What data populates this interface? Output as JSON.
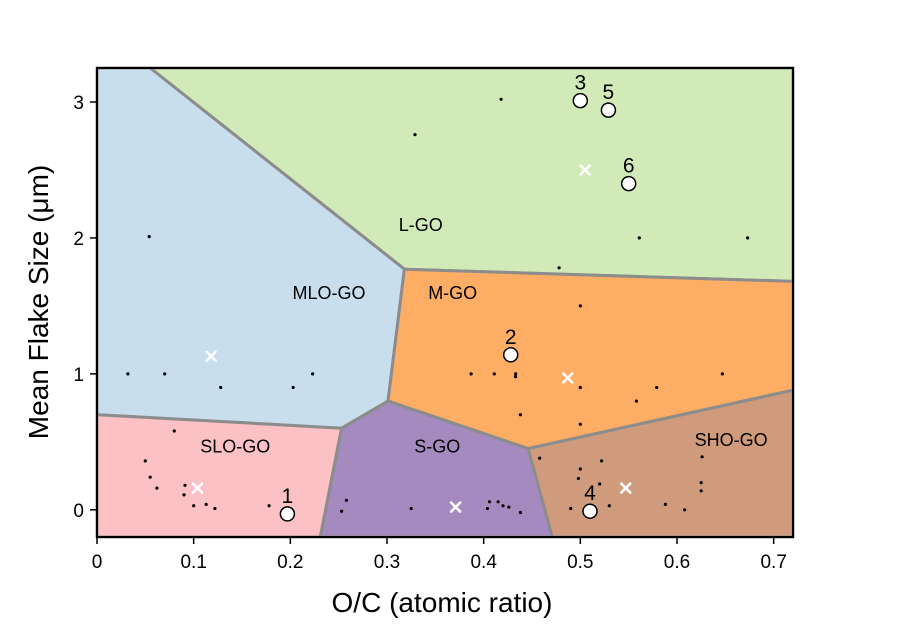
{
  "chart_data": {
    "type": "scatter",
    "xlabel": "O/C (atomic ratio)",
    "ylabel": "Mean Flake Size (μm)",
    "xlim": [
      0,
      0.72
    ],
    "ylim": [
      -0.2,
      3.25
    ],
    "xticks": [
      0,
      0.1,
      0.2,
      0.3,
      0.4,
      0.5,
      0.6,
      0.7
    ],
    "xtick_labels": [
      "0",
      "0.1",
      "0.2",
      "0.3",
      "0.4",
      "0.5",
      "0.6",
      "0.7"
    ],
    "yticks": [
      0,
      1,
      2,
      3
    ],
    "ytick_labels": [
      "0",
      "1",
      "2",
      "3"
    ],
    "grid": false,
    "colors": {
      "L-GO": "#d1eab7",
      "MLO-GO": "#c8deed",
      "M-GO": "#fdad64",
      "SLO-GO": "#fbc1c4",
      "S-GO": "#a58ac0",
      "SHO-GO": "#cf9b7c",
      "boundary": "#8c8c8c"
    },
    "regions": [
      {
        "name": "L-GO",
        "label": "L-GO",
        "label_at": [
          0.335,
          2.05
        ],
        "polygon": [
          [
            0.055,
            3.25
          ],
          [
            0.72,
            3.25
          ],
          [
            0.72,
            1.68
          ],
          [
            0.318,
            1.77
          ]
        ]
      },
      {
        "name": "MLO-GO",
        "label": "MLO-GO",
        "label_at": [
          0.24,
          1.55
        ],
        "polygon": [
          [
            0,
            3.25
          ],
          [
            0.055,
            3.25
          ],
          [
            0.318,
            1.77
          ],
          [
            0.301,
            0.8
          ],
          [
            0.253,
            0.6
          ],
          [
            0,
            0.7
          ]
        ]
      },
      {
        "name": "M-GO",
        "label": "M-GO",
        "label_at": [
          0.368,
          1.55
        ],
        "polygon": [
          [
            0.318,
            1.77
          ],
          [
            0.72,
            1.68
          ],
          [
            0.72,
            0.88
          ],
          [
            0.446,
            0.45
          ],
          [
            0.301,
            0.8
          ]
        ]
      },
      {
        "name": "SLO-GO",
        "label": "SLO-GO",
        "label_at": [
          0.143,
          0.42
        ],
        "polygon": [
          [
            0,
            0.7
          ],
          [
            0.253,
            0.6
          ],
          [
            0.231,
            -0.2
          ],
          [
            0,
            -0.2
          ]
        ]
      },
      {
        "name": "S-GO",
        "label": "S-GO",
        "label_at": [
          0.352,
          0.42
        ],
        "polygon": [
          [
            0.253,
            0.6
          ],
          [
            0.301,
            0.8
          ],
          [
            0.446,
            0.45
          ],
          [
            0.471,
            -0.2
          ],
          [
            0.231,
            -0.2
          ]
        ]
      },
      {
        "name": "SHO-GO",
        "label": "SHO-GO",
        "label_at": [
          0.656,
          0.47
        ],
        "polygon": [
          [
            0.446,
            0.45
          ],
          [
            0.72,
            0.88
          ],
          [
            0.72,
            -0.2
          ],
          [
            0.471,
            -0.2
          ]
        ]
      }
    ],
    "dots": [
      [
        0.418,
        3.02
      ],
      [
        0.329,
        2.76
      ],
      [
        0.054,
        2.01
      ],
      [
        0.561,
        2.0
      ],
      [
        0.673,
        2.0
      ],
      [
        0.478,
        1.78
      ],
      [
        0.5,
        1.5
      ],
      [
        0.032,
        1.0
      ],
      [
        0.07,
        1.0
      ],
      [
        0.128,
        0.9
      ],
      [
        0.203,
        0.9
      ],
      [
        0.223,
        1.0
      ],
      [
        0.387,
        1.0
      ],
      [
        0.411,
        1.0
      ],
      [
        0.433,
        0.98
      ],
      [
        0.433,
        1.0
      ],
      [
        0.5,
        0.9
      ],
      [
        0.558,
        0.8
      ],
      [
        0.579,
        0.9
      ],
      [
        0.647,
        1.0
      ],
      [
        0.438,
        0.7
      ],
      [
        0.5,
        0.63
      ],
      [
        0.08,
        0.58
      ],
      [
        0.05,
        0.36
      ],
      [
        0.055,
        0.24
      ],
      [
        0.062,
        0.16
      ],
      [
        0.09,
        0.11
      ],
      [
        0.091,
        0.18
      ],
      [
        0.1,
        0.03
      ],
      [
        0.113,
        0.04
      ],
      [
        0.122,
        0.01
      ],
      [
        0.178,
        0.03
      ],
      [
        0.258,
        0.07
      ],
      [
        0.253,
        -0.01
      ],
      [
        0.325,
        0.01
      ],
      [
        0.404,
        0.01
      ],
      [
        0.406,
        0.06
      ],
      [
        0.415,
        0.06
      ],
      [
        0.42,
        0.03
      ],
      [
        0.426,
        0.02
      ],
      [
        0.438,
        -0.02
      ],
      [
        0.458,
        0.38
      ],
      [
        0.49,
        0.01
      ],
      [
        0.498,
        0.23
      ],
      [
        0.5,
        0.3
      ],
      [
        0.522,
        0.36
      ],
      [
        0.52,
        0.19
      ],
      [
        0.53,
        0.03
      ],
      [
        0.588,
        0.04
      ],
      [
        0.608,
        0.0
      ],
      [
        0.625,
        0.2
      ],
      [
        0.625,
        0.14
      ],
      [
        0.626,
        0.39
      ]
    ],
    "crosses": [
      [
        0.505,
        2.5
      ],
      [
        0.118,
        1.13
      ],
      [
        0.487,
        0.97
      ],
      [
        0.104,
        0.16
      ],
      [
        0.371,
        0.02
      ],
      [
        0.547,
        0.16
      ]
    ],
    "circles": [
      {
        "label": "1",
        "x": 0.197,
        "y": -0.03
      },
      {
        "label": "2",
        "x": 0.428,
        "y": 1.14
      },
      {
        "label": "3",
        "x": 0.5,
        "y": 3.01
      },
      {
        "label": "4",
        "x": 0.51,
        "y": -0.01
      },
      {
        "label": "5",
        "x": 0.529,
        "y": 2.94
      },
      {
        "label": "6",
        "x": 0.55,
        "y": 2.4
      }
    ]
  }
}
